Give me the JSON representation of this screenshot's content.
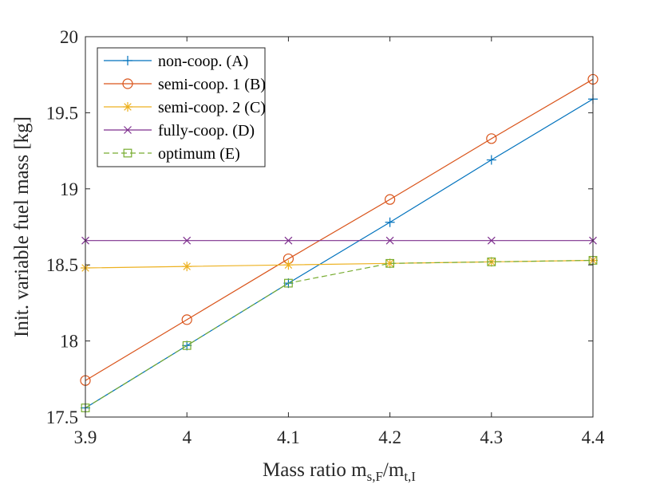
{
  "chart_data": {
    "type": "line",
    "title": "",
    "xlabel_main": "Mass ratio m",
    "xlabel_sub1": "s,F",
    "xlabel_mid": "/m",
    "xlabel_sub2": "t,I",
    "ylabel": "Init. variable fuel mass [kg]",
    "xlim": [
      3.9,
      4.4
    ],
    "ylim": [
      17.5,
      20
    ],
    "xticks": [
      3.9,
      4.0,
      4.1,
      4.2,
      4.3,
      4.4
    ],
    "xtick_labels": [
      "3.9",
      "4",
      "4.1",
      "4.2",
      "4.3",
      "4.4"
    ],
    "yticks": [
      17.5,
      18,
      18.5,
      19,
      19.5,
      20
    ],
    "ytick_labels": [
      "17.5",
      "18",
      "18.5",
      "19",
      "19.5",
      "20"
    ],
    "grid": false,
    "legend_position": "top-left",
    "x": [
      3.9,
      4.0,
      4.1,
      4.2,
      4.3,
      4.4
    ],
    "series": [
      {
        "name": "non-coop. (A)",
        "color": "#0072BD",
        "marker": "plus",
        "dash": "solid",
        "values": [
          17.56,
          17.97,
          18.38,
          18.78,
          19.19,
          19.59
        ]
      },
      {
        "name": "semi-coop. 1 (B)",
        "color": "#D95319",
        "marker": "circle",
        "dash": "solid",
        "values": [
          17.74,
          18.14,
          18.54,
          18.93,
          19.33,
          19.72
        ]
      },
      {
        "name": "semi-coop. 2 (C)",
        "color": "#EDB120",
        "marker": "asterisk",
        "dash": "solid",
        "values": [
          18.48,
          18.49,
          18.5,
          18.51,
          18.52,
          18.53
        ]
      },
      {
        "name": "fully-coop. (D)",
        "color": "#7E2F8E",
        "marker": "x",
        "dash": "solid",
        "values": [
          18.66,
          18.66,
          18.66,
          18.66,
          18.66,
          18.66
        ]
      },
      {
        "name": "optimum (E)",
        "color": "#77AC30",
        "marker": "square",
        "dash": "dashed",
        "values": [
          17.56,
          17.97,
          18.38,
          18.51,
          18.52,
          18.53
        ]
      }
    ]
  }
}
